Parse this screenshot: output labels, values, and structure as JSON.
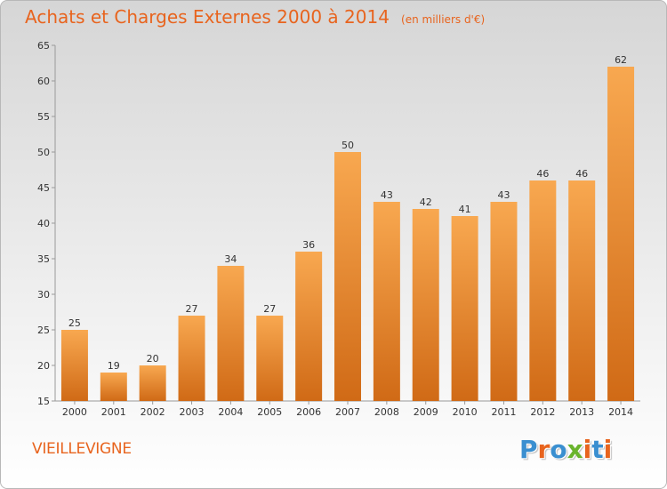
{
  "header": {
    "title": "Achats et Charges Externes 2000 à 2014",
    "unit": "(en milliers d'€)"
  },
  "footer": {
    "commune": "VIEILLEVIGNE",
    "logo": {
      "text": "Proxiti",
      "letter_colors": [
        "#3a8fd0",
        "#e8641e",
        "#3a8fd0",
        "#6ab42d",
        "#e8641e",
        "#3a8fd0",
        "#e8641e"
      ]
    }
  },
  "colors": {
    "accent": "#e8641e",
    "bar_light": "#f8a850",
    "bar_dark": "#d06a16"
  },
  "chart_data": {
    "type": "bar",
    "title": "Achats et Charges Externes 2000 à 2014",
    "subtitle": "(en milliers d'€)",
    "categories": [
      "2000",
      "2001",
      "2002",
      "2003",
      "2004",
      "2005",
      "2006",
      "2007",
      "2008",
      "2009",
      "2010",
      "2011",
      "2012",
      "2013",
      "2014"
    ],
    "values": [
      25,
      19,
      20,
      27,
      34,
      27,
      36,
      50,
      43,
      42,
      41,
      43,
      46,
      46,
      62
    ],
    "ylim": [
      15,
      65
    ],
    "yticks": [
      15,
      20,
      25,
      30,
      35,
      40,
      45,
      50,
      55,
      60,
      65
    ],
    "grid": false,
    "data_labels": true
  }
}
